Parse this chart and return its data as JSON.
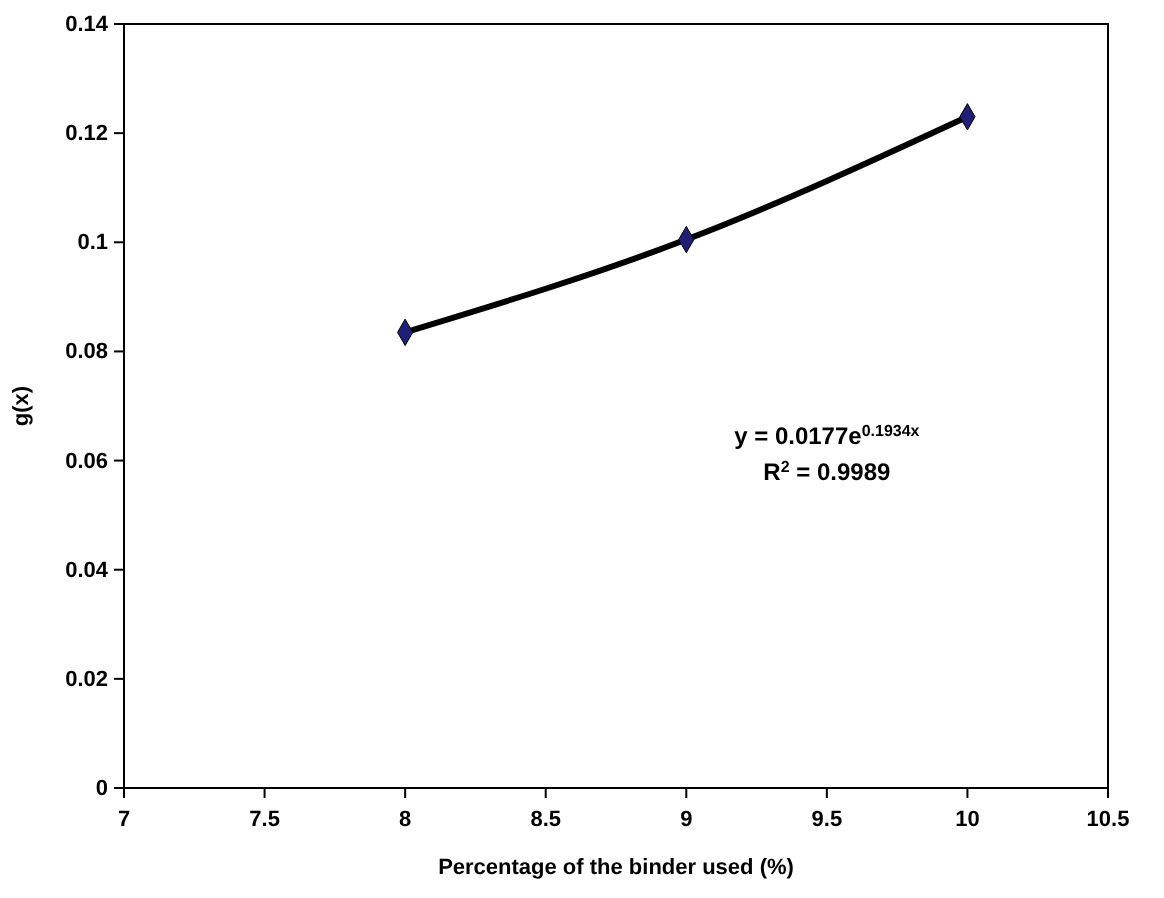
{
  "chart_data": {
    "type": "line",
    "xlabel": "Percentage of the binder used (%)",
    "ylabel": "g(x)",
    "xlim": [
      7,
      10.5
    ],
    "xticks": [
      7,
      7.5,
      8,
      8.5,
      9,
      9.5,
      10,
      10.5
    ],
    "ylim": [
      0,
      0.14
    ],
    "yticks": [
      0,
      0.02,
      0.04,
      0.06,
      0.08,
      0.1,
      0.12,
      0.14
    ],
    "grid": false,
    "series": [
      {
        "color": "#000000",
        "x": [
          8,
          9,
          10
        ],
        "values": [
          0.0835,
          0.1005,
          0.123
        ],
        "marker": "none",
        "line_style": "solid"
      },
      {
        "type": "scatter",
        "color": "#1f1f78",
        "x": [
          8,
          9,
          10
        ],
        "values": [
          0.0835,
          0.1005,
          0.123
        ],
        "marker": "diamond"
      }
    ],
    "annotations": [
      "y = 0.0177e$^{0.1934x}$",
      "R$^{2}$ = 0.9989"
    ]
  }
}
